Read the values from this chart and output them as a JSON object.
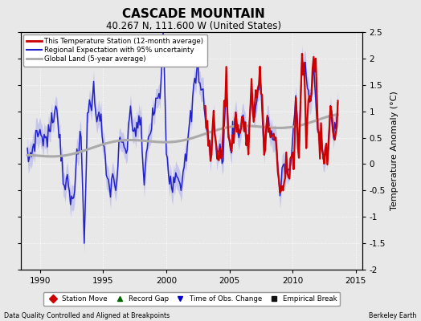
{
  "title": "CASCADE MOUNTAIN",
  "subtitle": "40.267 N, 111.600 W (United States)",
  "ylabel": "Temperature Anomaly (°C)",
  "xlim": [
    1988.5,
    2015.5
  ],
  "ylim": [
    -2.0,
    2.5
  ],
  "yticks": [
    -2.0,
    -1.5,
    -1.0,
    -0.5,
    0.0,
    0.5,
    1.0,
    1.5,
    2.0,
    2.5
  ],
  "xticks": [
    1990,
    1995,
    2000,
    2005,
    2010,
    2015
  ],
  "footer_left": "Data Quality Controlled and Aligned at Breakpoints",
  "footer_right": "Berkeley Earth",
  "background_color": "#e8e8e8",
  "plot_bg_color": "#e8e8e8",
  "red_label": "This Temperature Station (12-month average)",
  "blue_label": "Regional Expectation with 95% uncertainty",
  "gray_label": "Global Land (5-year average)",
  "bottom_legend": [
    {
      "label": "Station Move",
      "marker": "D",
      "color": "#cc0000"
    },
    {
      "label": "Record Gap",
      "marker": "^",
      "color": "#006600"
    },
    {
      "label": "Time of Obs. Change",
      "marker": "v",
      "color": "#0000cc"
    },
    {
      "label": "Empirical Break",
      "marker": "s",
      "color": "#111111"
    }
  ]
}
